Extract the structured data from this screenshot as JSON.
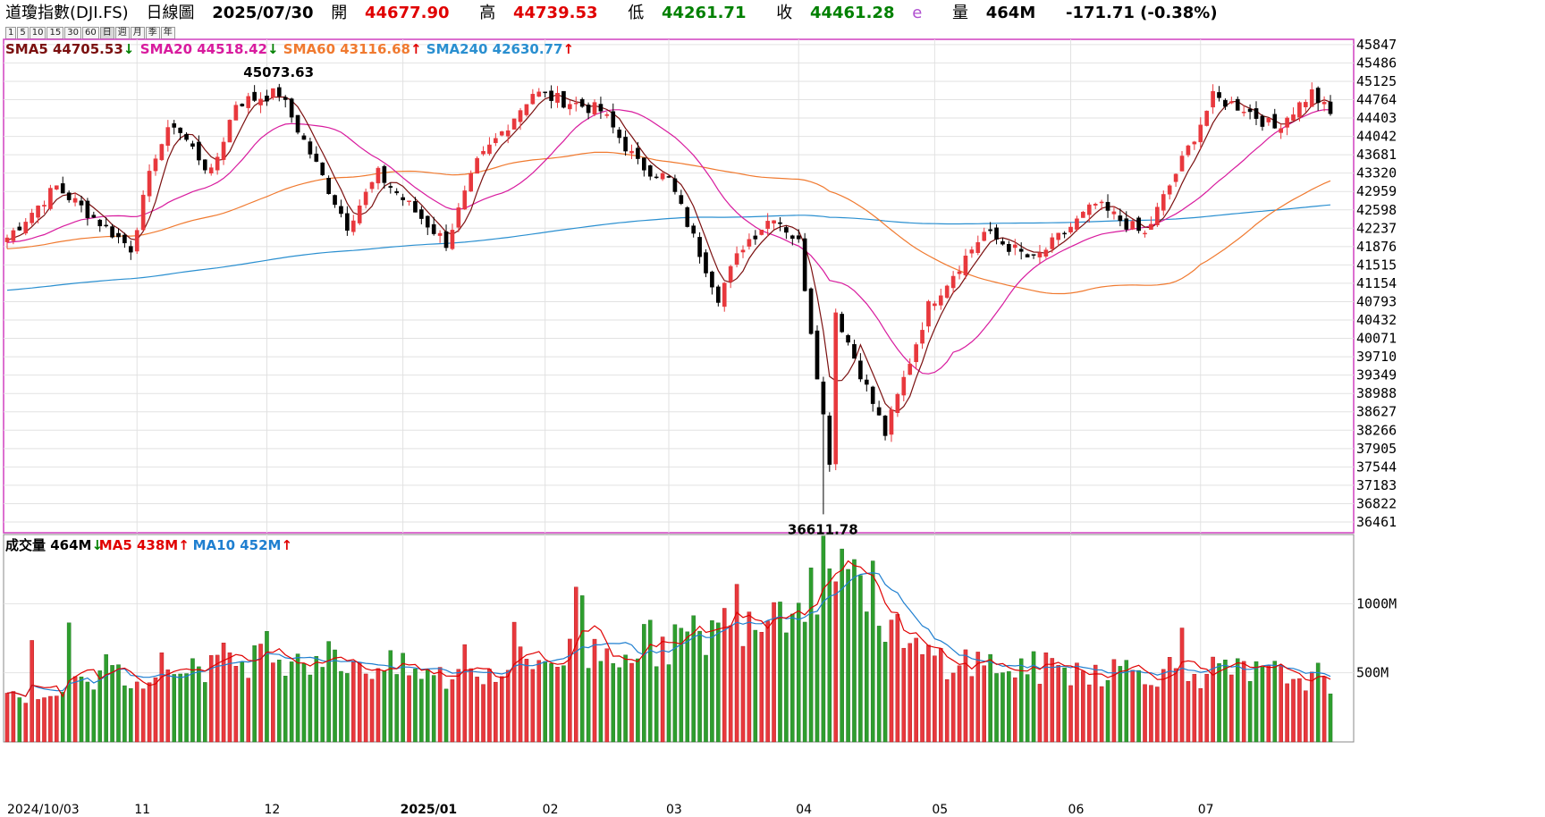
{
  "header": {
    "name": "道瓊指數(DJI.FS)",
    "period": "日線圖",
    "date": "2025/07/30",
    "open_label": "開",
    "open": "44677.90",
    "high_label": "高",
    "high": "44739.53",
    "low_label": "低",
    "low": "44261.71",
    "close_label": "收",
    "close": "44461.28",
    "estimate_flag": "e",
    "volume_label": "量",
    "volume": "464M",
    "change": "-171.71 (-0.38%)"
  },
  "period_buttons": [
    "1",
    "5",
    "10",
    "15",
    "30",
    "60",
    "日",
    "週",
    "月",
    "季",
    "年"
  ],
  "colors": {
    "up": "#e8383d",
    "down": "#000000",
    "vol_down": "#2e9e2e",
    "sma5": "#7b1010",
    "sma20": "#d81b9e",
    "sma60": "#f07a30",
    "sma240": "#2a8fd0",
    "vma5": "#e00000",
    "vma10": "#1f7fd0",
    "frame": "#d040c0"
  },
  "price_legend": [
    {
      "label": "SMA5",
      "value": "44705.53",
      "arrow": "↓",
      "arrow_color": "#008000",
      "color": "#7b1010"
    },
    {
      "label": "SMA20",
      "value": "44518.42",
      "arrow": "↓",
      "arrow_color": "#008000",
      "color": "#d81b9e"
    },
    {
      "label": "SMA60",
      "value": "43116.68",
      "arrow": "↑",
      "arrow_color": "#e00000",
      "color": "#f07a30"
    },
    {
      "label": "SMA240",
      "value": "42630.77",
      "arrow": "↑",
      "arrow_color": "#e00000",
      "color": "#2a8fd0"
    }
  ],
  "volume_legend": [
    {
      "label": "成交量",
      "value": "464M",
      "arrow": "↓",
      "arrow_color": "#008000",
      "color": "#000000"
    },
    {
      "label": "MA5",
      "value": "438M",
      "arrow": "↑",
      "arrow_color": "#e00000",
      "color": "#e00000"
    },
    {
      "label": "MA10",
      "value": "452M",
      "arrow": "↑",
      "arrow_color": "#e00000",
      "color": "#1f7fd0"
    }
  ],
  "chart_data": {
    "type": "candlestick",
    "price_axis_ticks": [
      "45847",
      "45486",
      "45125",
      "44764",
      "44403",
      "44042",
      "43681",
      "43320",
      "42959",
      "42598",
      "42237",
      "41876",
      "41515",
      "41154",
      "40793",
      "40432",
      "40071",
      "39710",
      "39349",
      "38988",
      "38627",
      "38266",
      "37905",
      "37544",
      "37183",
      "36822",
      "36461"
    ],
    "volume_axis_ticks": [
      "1000M",
      "500M"
    ],
    "x_labels": [
      "2024/10/03",
      "11",
      "12",
      "2025/01",
      "02",
      "03",
      "04",
      "05",
      "06",
      "07"
    ],
    "annotations": [
      {
        "text": "45073.63",
        "kind": "high"
      },
      {
        "text": "36611.78",
        "kind": "low"
      }
    ],
    "anchors": [
      {
        "x": "2024/10/03",
        "y": 42050
      },
      {
        "x": "2024/10/15",
        "y": 43050
      },
      {
        "x": "2024/10/31",
        "y": 41850
      },
      {
        "x": "2024/11/06",
        "y": 43700
      },
      {
        "x": "2024/11/11",
        "y": 44300
      },
      {
        "x": "2024/11/19",
        "y": 43300
      },
      {
        "x": "2024/11/25",
        "y": 44700
      },
      {
        "x": "2024/12/04",
        "y": 44900
      },
      {
        "x": "2024/12/19",
        "y": 42300
      },
      {
        "x": "2024/12/26",
        "y": 43300
      },
      {
        "x": "2025/01/10",
        "y": 41950
      },
      {
        "x": "2025/01/17",
        "y": 43500
      },
      {
        "x": "2025/01/30",
        "y": 44900
      },
      {
        "x": "2025/02/14",
        "y": 44550
      },
      {
        "x": "2025/02/24",
        "y": 43500
      },
      {
        "x": "2025/03/03",
        "y": 43200
      },
      {
        "x": "2025/03/13",
        "y": 40900
      },
      {
        "x": "2025/03/19",
        "y": 41900
      },
      {
        "x": "2025/03/26",
        "y": 42500
      },
      {
        "x": "2025/04/01",
        "y": 41950
      },
      {
        "x": "2025/04/08",
        "y": 37700
      },
      {
        "x": "2025/04/09",
        "y": 40600
      },
      {
        "x": "2025/04/21",
        "y": 38200
      },
      {
        "x": "2025/04/30",
        "y": 40700
      },
      {
        "x": "2025/05/13",
        "y": 42150
      },
      {
        "x": "2025/05/23",
        "y": 41600
      },
      {
        "x": "2025/06/06",
        "y": 42700
      },
      {
        "x": "2025/06/18",
        "y": 42100
      },
      {
        "x": "2025/06/27",
        "y": 43800
      },
      {
        "x": "2025/07/03",
        "y": 44800
      },
      {
        "x": "2025/07/10",
        "y": 44600
      },
      {
        "x": "2025/07/17",
        "y": 44200
      },
      {
        "x": "2025/07/25",
        "y": 44900
      },
      {
        "x": "2025/07/30",
        "y": 44461.28
      }
    ],
    "volume_anchors": [
      {
        "x": "2024/10/03",
        "v": 330
      },
      {
        "x": "2024/11/05",
        "v": 520
      },
      {
        "x": "2024/12/06",
        "v": 640
      },
      {
        "x": "2024/12/20",
        "v": 580
      },
      {
        "x": "2025/01/10",
        "v": 460
      },
      {
        "x": "2025/02/03",
        "v": 600
      },
      {
        "x": "2025/03/10",
        "v": 760
      },
      {
        "x": "2025/04/04",
        "v": 1150
      },
      {
        "x": "2025/04/09",
        "v": 1480
      },
      {
        "x": "2025/04/25",
        "v": 640
      },
      {
        "x": "2025/05/20",
        "v": 530
      },
      {
        "x": "2025/06/20",
        "v": 520
      },
      {
        "x": "2025/07/30",
        "v": 464
      }
    ],
    "ylim": [
      36250,
      45950
    ],
    "volume_ylim": [
      0,
      1500
    ],
    "legend_position": "top-left"
  }
}
